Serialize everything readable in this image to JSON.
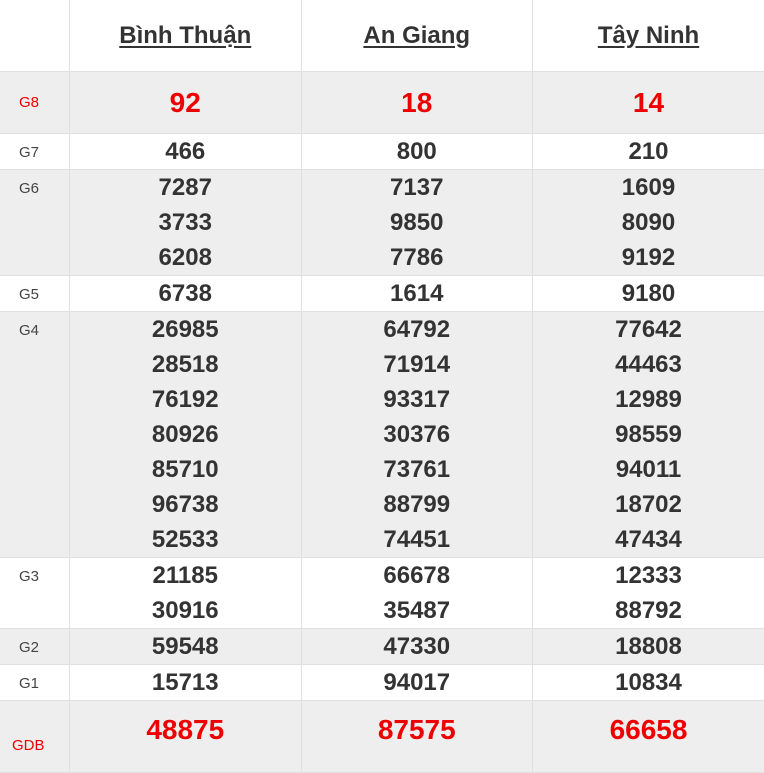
{
  "provinces": [
    "Bình Thuận",
    "An Giang",
    "Tây Ninh"
  ],
  "accent_color": "#ee0000",
  "prizes": [
    {
      "label": "G8",
      "highlight": true,
      "values": [
        [
          "92"
        ],
        [
          "18"
        ],
        [
          "14"
        ]
      ]
    },
    {
      "label": "G7",
      "highlight": false,
      "values": [
        [
          "466"
        ],
        [
          "800"
        ],
        [
          "210"
        ]
      ]
    },
    {
      "label": "G6",
      "highlight": false,
      "values": [
        [
          "7287",
          "3733",
          "6208"
        ],
        [
          "7137",
          "9850",
          "7786"
        ],
        [
          "1609",
          "8090",
          "9192"
        ]
      ]
    },
    {
      "label": "G5",
      "highlight": false,
      "values": [
        [
          "6738"
        ],
        [
          "1614"
        ],
        [
          "9180"
        ]
      ]
    },
    {
      "label": "G4",
      "highlight": false,
      "values": [
        [
          "26985",
          "28518",
          "76192",
          "80926",
          "85710",
          "96738",
          "52533"
        ],
        [
          "64792",
          "71914",
          "93317",
          "30376",
          "73761",
          "88799",
          "74451"
        ],
        [
          "77642",
          "44463",
          "12989",
          "98559",
          "94011",
          "18702",
          "47434"
        ]
      ]
    },
    {
      "label": "G3",
      "highlight": false,
      "values": [
        [
          "21185",
          "30916"
        ],
        [
          "66678",
          "35487"
        ],
        [
          "12333",
          "88792"
        ]
      ]
    },
    {
      "label": "G2",
      "highlight": false,
      "values": [
        [
          "59548"
        ],
        [
          "47330"
        ],
        [
          "18808"
        ]
      ]
    },
    {
      "label": "G1",
      "highlight": false,
      "values": [
        [
          "15713"
        ],
        [
          "94017"
        ],
        [
          "10834"
        ]
      ]
    },
    {
      "label": "GDB",
      "highlight": true,
      "values": [
        [
          "48875"
        ],
        [
          "87575"
        ],
        [
          "66658"
        ]
      ]
    }
  ]
}
